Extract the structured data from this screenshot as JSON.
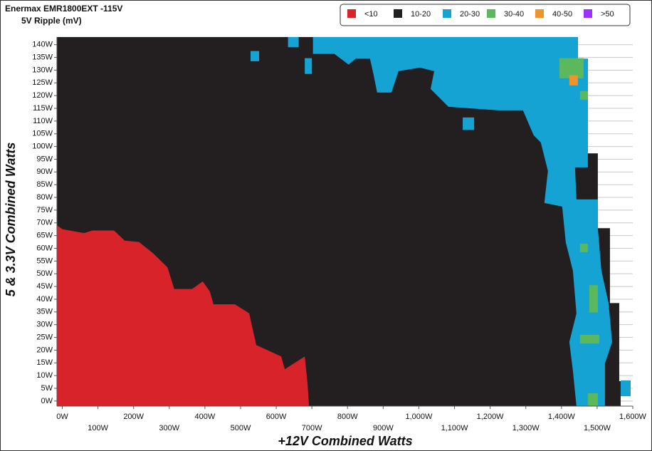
{
  "chart_data": {
    "type": "heatmap",
    "title": "Enermax EMR1800EXT -115V",
    "subtitle": "5V Ripple (mV)",
    "x_label": "+12V Combined Watts",
    "y_label": "5 & 3.3V Combined Watts",
    "xlim": [
      -15,
      1600
    ],
    "ylim": [
      -2,
      143
    ],
    "xticks": [
      {
        "value": 0,
        "label": "0W"
      },
      {
        "value": 100,
        "label": "100W"
      },
      {
        "value": 200,
        "label": "200W"
      },
      {
        "value": 300,
        "label": "300W"
      },
      {
        "value": 400,
        "label": "400W"
      },
      {
        "value": 500,
        "label": "500W"
      },
      {
        "value": 600,
        "label": "600W"
      },
      {
        "value": 700,
        "label": "700W"
      },
      {
        "value": 800,
        "label": "800W"
      },
      {
        "value": 900,
        "label": "900W"
      },
      {
        "value": 1000,
        "label": "1,000W"
      },
      {
        "value": 1100,
        "label": "1,100W"
      },
      {
        "value": 1200,
        "label": "1,200W"
      },
      {
        "value": 1300,
        "label": "1,300W"
      },
      {
        "value": 1400,
        "label": "1,400W"
      },
      {
        "value": 1500,
        "label": "1,500W"
      },
      {
        "value": 1600,
        "label": "1,600W"
      }
    ],
    "yticks": [
      {
        "value": 0,
        "label": "0W"
      },
      {
        "value": 5,
        "label": "5W"
      },
      {
        "value": 10,
        "label": "10W"
      },
      {
        "value": 15,
        "label": "15W"
      },
      {
        "value": 20,
        "label": "20W"
      },
      {
        "value": 25,
        "label": "25W"
      },
      {
        "value": 30,
        "label": "30W"
      },
      {
        "value": 35,
        "label": "35W"
      },
      {
        "value": 40,
        "label": "40W"
      },
      {
        "value": 45,
        "label": "45W"
      },
      {
        "value": 50,
        "label": "50W"
      },
      {
        "value": 55,
        "label": "55W"
      },
      {
        "value": 60,
        "label": "60W"
      },
      {
        "value": 65,
        "label": "65W"
      },
      {
        "value": 70,
        "label": "70W"
      },
      {
        "value": 75,
        "label": "75W"
      },
      {
        "value": 80,
        "label": "80W"
      },
      {
        "value": 85,
        "label": "85W"
      },
      {
        "value": 90,
        "label": "90W"
      },
      {
        "value": 95,
        "label": "95W"
      },
      {
        "value": 100,
        "label": "100W"
      },
      {
        "value": 105,
        "label": "105W"
      },
      {
        "value": 110,
        "label": "110W"
      },
      {
        "value": 115,
        "label": "115W"
      },
      {
        "value": 120,
        "label": "120W"
      },
      {
        "value": 125,
        "label": "125W"
      },
      {
        "value": 130,
        "label": "130W"
      },
      {
        "value": 135,
        "label": "135W"
      },
      {
        "value": 140,
        "label": "140W"
      }
    ],
    "grid": true,
    "legend": "top-right",
    "series": [
      {
        "name": "<10",
        "color": "#d9232a",
        "regions": [
          [
            [
              -15,
              69
            ],
            [
              1,
              67.5
            ],
            [
              61,
              66
            ],
            [
              85,
              67
            ],
            [
              145,
              67
            ],
            [
              175,
              63
            ],
            [
              215,
              62.5
            ],
            [
              255,
              58
            ],
            [
              295,
              52.5
            ],
            [
              314,
              44
            ],
            [
              364,
              44
            ],
            [
              394,
              47
            ],
            [
              414,
              43
            ],
            [
              424,
              38
            ],
            [
              484,
              38
            ],
            [
              524,
              34.5
            ],
            [
              544,
              22
            ],
            [
              614,
              17.5
            ],
            [
              624,
              12.5
            ],
            [
              680,
              17.5
            ],
            [
              688,
              6.5
            ],
            [
              692,
              -2
            ],
            [
              -15,
              -2
            ]
          ]
        ]
      },
      {
        "name": "10-20",
        "color": "#231f20",
        "regions": [
          [
            [
              -15,
              143
            ],
            [
              1446,
              143
            ],
            [
              1446,
              134.5
            ],
            [
              1474,
              134.5
            ],
            [
              1474,
              97.3
            ],
            [
              1502,
              97.3
            ],
            [
              1502,
              67.9
            ],
            [
              1536,
              67.9
            ],
            [
              1536,
              38.5
            ],
            [
              1562,
              38.5
            ],
            [
              1562,
              7.8
            ],
            [
              1566,
              7.8
            ],
            [
              1566,
              -2
            ],
            [
              -15,
              -2
            ]
          ]
        ]
      },
      {
        "name": "20-30",
        "color": "#15a3d3",
        "regions": [
          [
            [
              703,
              143
            ],
            [
              1446,
              143
            ],
            [
              1446,
              134.5
            ],
            [
              1474,
              134.5
            ],
            [
              1474,
              91.8
            ],
            [
              1438,
              91.8
            ],
            [
              1442,
              79.2
            ],
            [
              1502,
              79.2
            ],
            [
              1502,
              67.9
            ],
            [
              1512,
              51.2
            ],
            [
              1532,
              38.6
            ],
            [
              1542,
              23.2
            ],
            [
              1522,
              14.8
            ],
            [
              1522,
              -2
            ],
            [
              1442,
              -2
            ],
            [
              1432,
              12
            ],
            [
              1422,
              23.2
            ],
            [
              1442,
              34.4
            ],
            [
              1432,
              51.2
            ],
            [
              1412,
              62.4
            ],
            [
              1402,
              76.4
            ],
            [
              1352,
              77.8
            ],
            [
              1362,
              90.4
            ],
            [
              1342,
              101.6
            ],
            [
              1322,
              104.4
            ],
            [
              1292,
              114.2
            ],
            [
              1223,
              114.2
            ],
            [
              1083,
              115.6
            ],
            [
              1033,
              122.6
            ],
            [
              1043,
              129.6
            ],
            [
              1003,
              131
            ],
            [
              943,
              129.6
            ],
            [
              923,
              121.2
            ],
            [
              883,
              121.2
            ],
            [
              873,
              128.2
            ],
            [
              863,
              134.5
            ],
            [
              823,
              134.5
            ],
            [
              803,
              132.2
            ],
            [
              763,
              136.4
            ],
            [
              703,
              136.4
            ]
          ],
          [
            [
              528,
              133.5
            ],
            [
              552,
              133.5
            ],
            [
              552,
              137.5
            ],
            [
              528,
              137.5
            ]
          ],
          [
            [
              633,
              139
            ],
            [
              663,
              139
            ],
            [
              663,
              143
            ],
            [
              633,
              143
            ]
          ],
          [
            [
              1123,
              106.5
            ],
            [
              1155,
              106.5
            ],
            [
              1155,
              111.4
            ],
            [
              1123,
              111.4
            ]
          ],
          [
            [
              680,
              128.5
            ],
            [
              700,
              128.5
            ],
            [
              700,
              134.7
            ],
            [
              680,
              134.7
            ]
          ],
          [
            [
              1566,
              1.9
            ],
            [
              1594,
              1.9
            ],
            [
              1594,
              8.1
            ],
            [
              1566,
              8.1
            ]
          ]
        ]
      },
      {
        "name": "30-40",
        "color": "#5cb85c",
        "regions": [
          [
            [
              1394,
              126.8
            ],
            [
              1462,
              126.8
            ],
            [
              1462,
              134.7
            ],
            [
              1394,
              134.7
            ]
          ],
          [
            [
              1452,
              118.4
            ],
            [
              1474,
              118.4
            ],
            [
              1474,
              121.8
            ],
            [
              1452,
              121.8
            ]
          ],
          [
            [
              1452,
              58.5
            ],
            [
              1474,
              58.5
            ],
            [
              1474,
              61.8
            ],
            [
              1452,
              61.8
            ]
          ],
          [
            [
              1478,
              34.8
            ],
            [
              1502,
              34.8
            ],
            [
              1502,
              45.5
            ],
            [
              1478,
              45.5
            ]
          ],
          [
            [
              1452,
              22.6
            ],
            [
              1506,
              22.6
            ],
            [
              1506,
              26
            ],
            [
              1452,
              26
            ]
          ],
          [
            [
              1474,
              -2
            ],
            [
              1502,
              -2
            ],
            [
              1502,
              3
            ],
            [
              1474,
              3
            ]
          ]
        ]
      },
      {
        "name": "40-50",
        "color": "#f0932b",
        "regions": [
          [
            [
              1422,
              124
            ],
            [
              1446,
              124
            ],
            [
              1446,
              128
            ],
            [
              1422,
              128
            ]
          ]
        ]
      },
      {
        "name": ">50",
        "color": "#9b30ff",
        "regions": []
      }
    ]
  }
}
